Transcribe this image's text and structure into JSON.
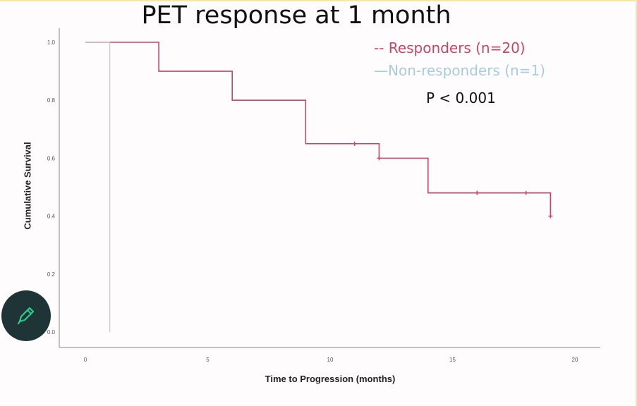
{
  "chart_data": {
    "type": "line",
    "title": "PET response at 1 month",
    "xlabel": "Time to Progression (months)",
    "ylabel": "Cumulative Survival",
    "xlim": [
      0,
      20
    ],
    "ylim": [
      0,
      1.0
    ],
    "x_ticks": [
      0,
      5,
      10,
      15,
      20
    ],
    "y_ticks": [
      1.0,
      0.8,
      0.6,
      0.4,
      0.2,
      0.0
    ],
    "annotation": "P < 0.001",
    "legend_position": "top-right",
    "series": [
      {
        "name": "-- Responders (n=20)",
        "color": "#c8466a",
        "step_x": [
          0,
          3,
          3,
          6,
          6,
          9,
          9,
          12,
          12,
          14,
          14,
          19,
          19
        ],
        "step_y": [
          1.0,
          1.0,
          0.9,
          0.9,
          0.8,
          0.8,
          0.65,
          0.65,
          0.6,
          0.6,
          0.48,
          0.48,
          0.4
        ],
        "censored": [
          [
            11,
            0.65
          ],
          [
            12,
            0.6
          ],
          [
            16,
            0.48
          ],
          [
            18,
            0.48
          ],
          [
            19,
            0.4
          ]
        ]
      },
      {
        "name": "—Non-responders (n=1)",
        "color": "#a9cbe0",
        "step_x": [
          0,
          1,
          1
        ],
        "step_y": [
          1.0,
          1.0,
          0.0
        ],
        "censored": []
      }
    ]
  },
  "fab": {
    "icon": "pencil-icon"
  }
}
